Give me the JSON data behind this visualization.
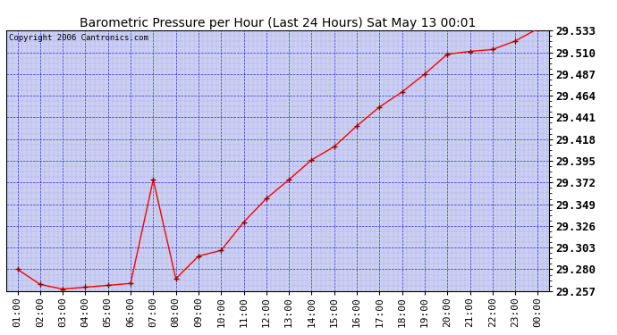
{
  "title": "Barometric Pressure per Hour (Last 24 Hours) Sat May 13 00:01",
  "copyright": "Copyright 2006 Cantronics.com",
  "x_labels": [
    "01:00",
    "02:00",
    "03:00",
    "04:00",
    "05:00",
    "06:00",
    "07:00",
    "08:00",
    "09:00",
    "10:00",
    "11:00",
    "12:00",
    "13:00",
    "14:00",
    "15:00",
    "16:00",
    "17:00",
    "18:00",
    "19:00",
    "20:00",
    "21:00",
    "22:00",
    "23:00",
    "00:00"
  ],
  "x_values": [
    1,
    2,
    3,
    4,
    5,
    6,
    7,
    8,
    9,
    10,
    11,
    12,
    13,
    14,
    15,
    16,
    17,
    18,
    19,
    20,
    21,
    22,
    23,
    24
  ],
  "y_values": [
    29.28,
    29.264,
    29.259,
    29.261,
    29.263,
    29.265,
    29.375,
    29.27,
    29.294,
    29.3,
    29.33,
    29.355,
    29.375,
    29.396,
    29.41,
    29.432,
    29.452,
    29.468,
    29.487,
    29.508,
    29.511,
    29.513,
    29.522,
    29.535
  ],
  "ylim_min": 29.257,
  "ylim_max": 29.533,
  "yticks": [
    29.257,
    29.28,
    29.303,
    29.326,
    29.349,
    29.372,
    29.395,
    29.418,
    29.441,
    29.464,
    29.487,
    29.51,
    29.533
  ],
  "line_color": "red",
  "marker_color": "darkred",
  "bg_color": "#ccd0f0",
  "outer_bg": "white",
  "grid_color": "blue",
  "title_fontsize": 10,
  "copyright_fontsize": 6.5,
  "axis_fontsize": 8,
  "ytick_fontsize": 9,
  "ytick_fontweight": "bold"
}
